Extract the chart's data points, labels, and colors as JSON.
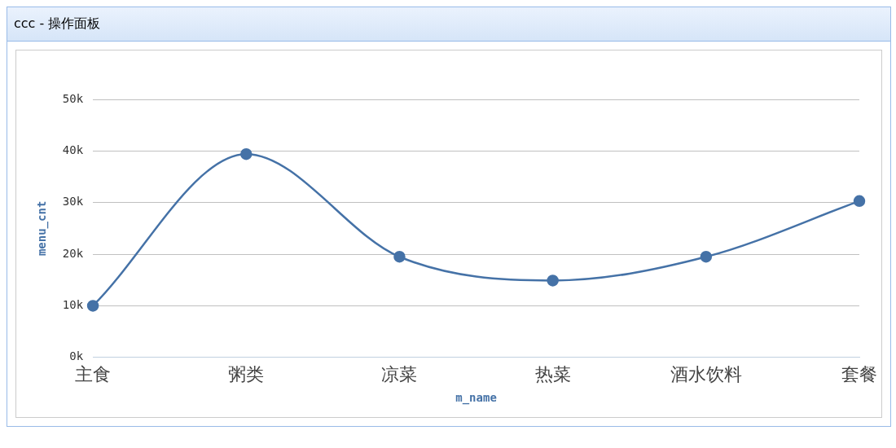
{
  "chart_data": {
    "type": "line",
    "title": "ccc - 操作面板",
    "xlabel": "m_name",
    "ylabel": "menu_cnt",
    "categories": [
      "主食",
      "粥类",
      "凉菜",
      "热菜",
      "酒水饮料",
      "套餐"
    ],
    "series": [
      {
        "color": "#4572a7",
        "values": [
          10000,
          39400,
          19500,
          14900,
          19500,
          30300
        ]
      }
    ],
    "ylim": [
      0,
      50000
    ],
    "yticks": [
      {
        "value": 0,
        "label": "0k"
      },
      {
        "value": 10000,
        "label": "10k"
      },
      {
        "value": 20000,
        "label": "20k"
      },
      {
        "value": 30000,
        "label": "30k"
      },
      {
        "value": 40000,
        "label": "40k"
      },
      {
        "value": 50000,
        "label": "50k"
      }
    ],
    "grid": "y",
    "legend": false,
    "marker": "circle",
    "line_style": "solid"
  }
}
